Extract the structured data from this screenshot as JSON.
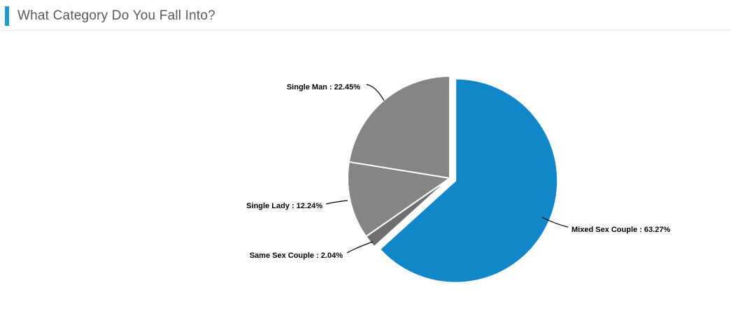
{
  "header": {
    "title": "What Category Do You Fall Into?",
    "accent_color": "#2398cd",
    "title_color": "#545a5f"
  },
  "chart_data": {
    "type": "pie",
    "title": "What Category Do You Fall Into?",
    "unit": "%",
    "start_angle": 0,
    "direction": "clockwise",
    "legend": "none",
    "border_color": "#ffffff",
    "label_color": "#000000",
    "connector_color": "#000000",
    "slices": [
      {
        "name": "Mixed Sex Couple",
        "value": 63.27,
        "label": "Mixed Sex Couple : 63.27%",
        "color": "#1186c9",
        "sliced": true
      },
      {
        "name": "Same Sex Couple",
        "value": 2.04,
        "label": "Same Sex Couple : 2.04%",
        "color": "#6f6f6f",
        "sliced": false
      },
      {
        "name": "Single Lady",
        "value": 12.24,
        "label": "Single Lady : 12.24%",
        "color": "#858585",
        "sliced": false
      },
      {
        "name": "Single Man",
        "value": 22.45,
        "label": "Single Man : 22.45%",
        "color": "#858585",
        "sliced": false
      }
    ]
  }
}
